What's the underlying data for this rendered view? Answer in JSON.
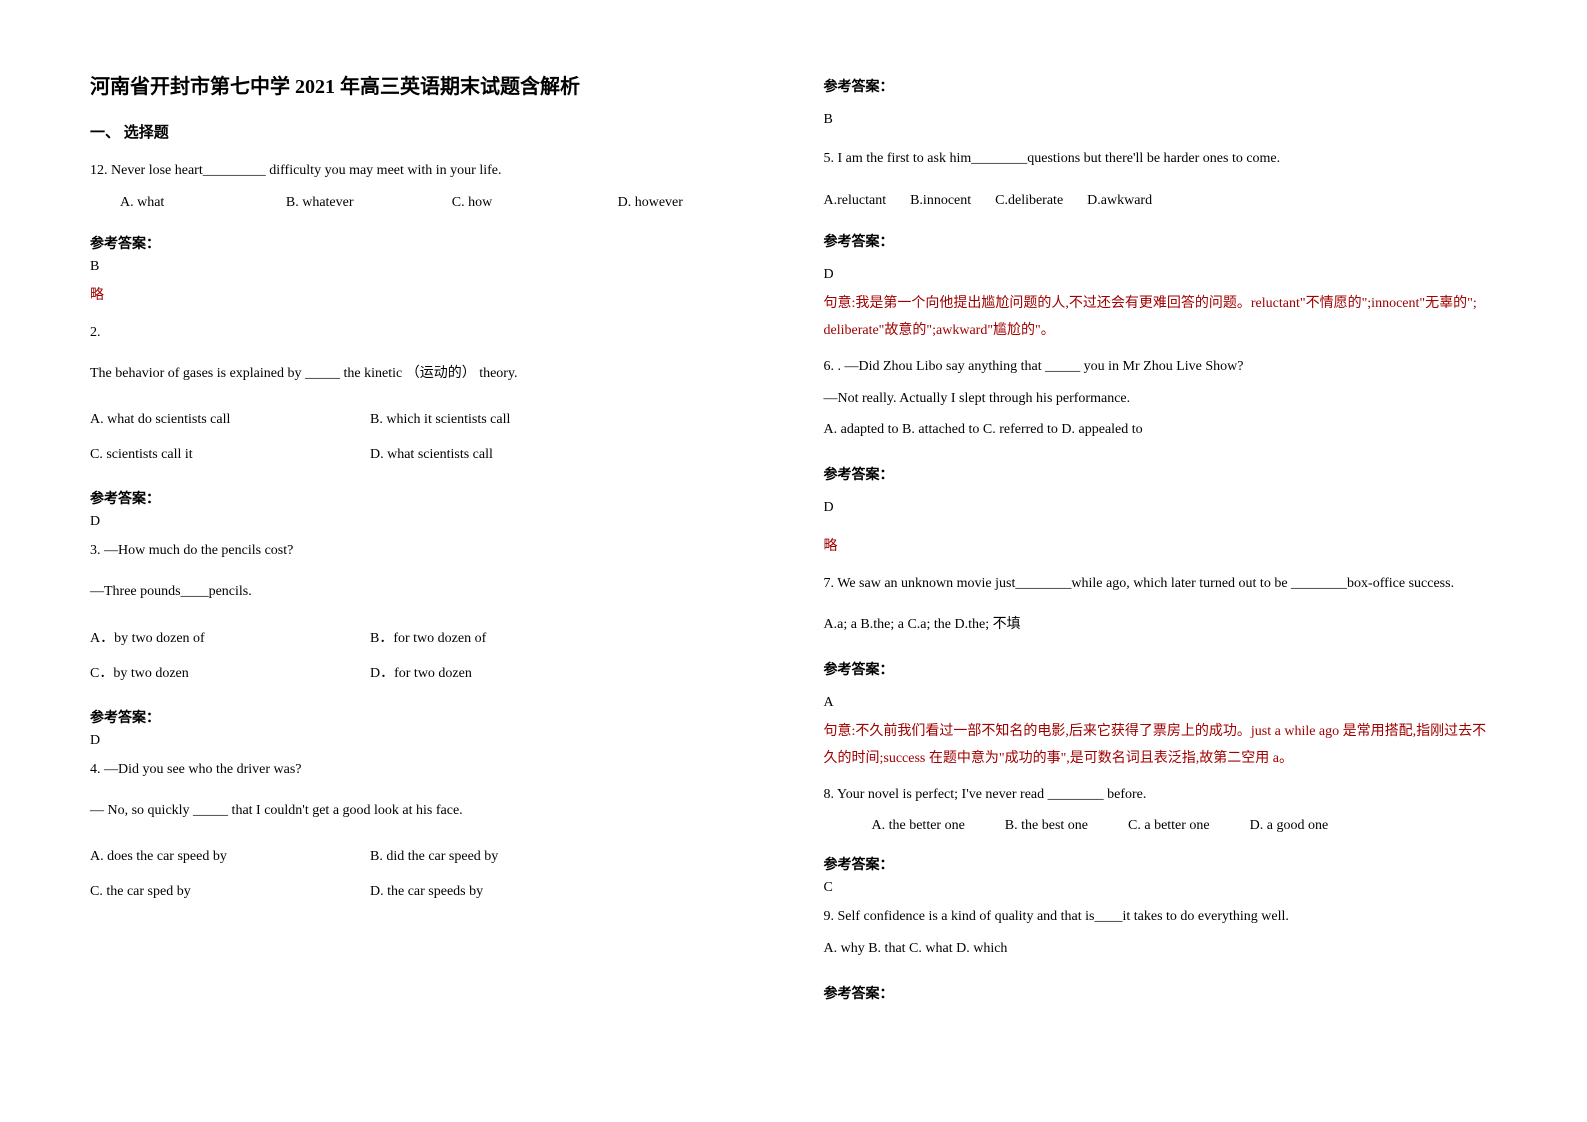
{
  "title": "河南省开封市第七中学 2021 年高三英语期末试题含解析",
  "section1": "一、 选择题",
  "q12": {
    "text": "12. Never lose heart_________ difficulty you may meet with in your life.",
    "a": "A. what",
    "b": "B. whatever",
    "c": "C. how",
    "d": "D. however"
  },
  "q2": {
    "number": "2.",
    "text": "The behavior of gases is explained by _____ the kinetic （运动的） theory.",
    "a": "A. what do scientists call",
    "b": "B. which it scientists call",
    "c": "C. scientists call it",
    "d": "D. what scientists call"
  },
  "q3": {
    "text1": "3. —How much do the pencils cost?",
    "text2": "—Three pounds____pencils.",
    "a": "A．by two dozen of",
    "b": "B．for two dozen of",
    "c": "C．by two dozen",
    "d": "D．for two dozen"
  },
  "q4": {
    "text1": "4. —Did you see who the driver was?",
    "text2": "— No, so quickly _____ that I couldn't get a good look at his face.",
    "a": "A. does the car speed by",
    "b": "B. did the car speed by",
    "c": "C. the car sped by",
    "d": "D. the car speeds by"
  },
  "q5": {
    "text": "5. I am the first to ask him________questions but there'll be harder ones to come.",
    "a": "A.reluctant",
    "b": "B.innocent",
    "c": "C.deliberate",
    "d": "D.awkward",
    "explanation": "句意:我是第一个向他提出尴尬问题的人,不过还会有更难回答的问题。reluctant\"不情愿的\";innocent\"无辜的\"; deliberate\"故意的\";awkward\"尴尬的\"。"
  },
  "q6": {
    "text1": "6. . —Did Zhou Libo say anything that _____ you in Mr Zhou Live Show?",
    "text2": "  —Not really. Actually I slept through his performance.",
    "options": "A. adapted to   B. attached to   C. referred to   D. appealed to"
  },
  "q7": {
    "text": "7. We saw an unknown movie just________while ago, which later turned out to be ________box-office success.",
    "options": "A.a; a   B.the; a C.a; the D.the; 不填",
    "explanation": "句意:不久前我们看过一部不知名的电影,后来它获得了票房上的成功。just a while ago 是常用搭配,指刚过去不久的时间;success 在题中意为\"成功的事\",是可数名词且表泛指,故第二空用 a。"
  },
  "q8": {
    "text": "8. Your novel is perfect; I've never read ________ before.",
    "a": "A. the better one",
    "b": "B. the best one",
    "c": "C. a better one",
    "d": "D. a good one"
  },
  "q9": {
    "text": "9. Self confidence is a kind of quality and that is____it takes to do everything well.",
    "options": "A. why    B. that  C. what   D. which"
  },
  "labels": {
    "answer": "参考答案：",
    "omit": "略"
  },
  "answers": {
    "q12": "B",
    "q2": "D",
    "q3": "D",
    "q4": "B",
    "q5": "D",
    "q6": "D",
    "q7": "A",
    "q8": "C"
  }
}
